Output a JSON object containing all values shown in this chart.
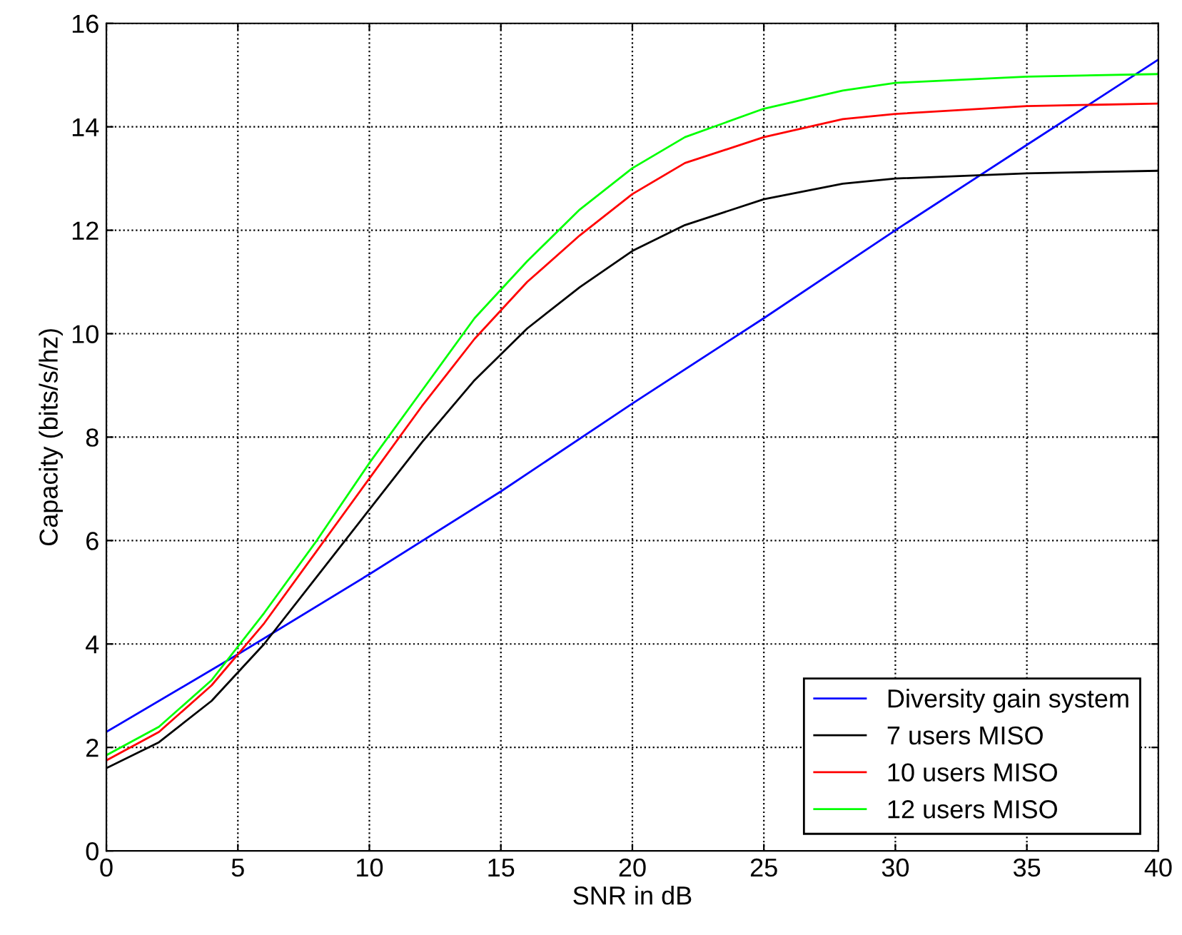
{
  "chart_data": {
    "type": "line",
    "xlabel": "SNR in dB",
    "ylabel": "Capacity (bits/s/hz)",
    "xlim": [
      0,
      40
    ],
    "ylim": [
      0,
      16
    ],
    "xticks": [
      0,
      5,
      10,
      15,
      20,
      25,
      30,
      35,
      40
    ],
    "yticks": [
      0,
      2,
      4,
      6,
      8,
      10,
      12,
      14,
      16
    ],
    "grid": true,
    "legend": "bottom right",
    "marker": "none",
    "line_style": "solid",
    "series": [
      {
        "name": "Diversity gain system",
        "color": "#0000ff",
        "x": [
          0,
          5,
          10,
          15,
          20,
          25,
          30,
          35,
          40
        ],
        "values": [
          2.3,
          3.8,
          5.35,
          6.95,
          8.65,
          10.3,
          12.0,
          13.65,
          15.3
        ]
      },
      {
        "name": "7 users MISO",
        "color": "#000000",
        "x": [
          0,
          2,
          4,
          6,
          8,
          10,
          12,
          14,
          16,
          18,
          20,
          22,
          25,
          28,
          30,
          35,
          40
        ],
        "values": [
          1.6,
          2.1,
          2.9,
          4.0,
          5.3,
          6.6,
          7.9,
          9.1,
          10.1,
          10.9,
          11.6,
          12.1,
          12.6,
          12.9,
          13.0,
          13.1,
          13.15
        ]
      },
      {
        "name": "10 users MISO",
        "color": "#ff0000",
        "x": [
          0,
          2,
          4,
          6,
          8,
          10,
          12,
          14,
          16,
          18,
          20,
          22,
          25,
          28,
          30,
          35,
          40
        ],
        "values": [
          1.75,
          2.3,
          3.2,
          4.4,
          5.8,
          7.2,
          8.6,
          9.9,
          11.0,
          11.9,
          12.7,
          13.3,
          13.8,
          14.15,
          14.25,
          14.4,
          14.45
        ]
      },
      {
        "name": "12 users MISO",
        "color": "#00ff00",
        "x": [
          0,
          2,
          4,
          6,
          8,
          10,
          12,
          14,
          16,
          18,
          20,
          22,
          25,
          28,
          30,
          35,
          40
        ],
        "values": [
          1.85,
          2.4,
          3.3,
          4.6,
          6.0,
          7.5,
          8.9,
          10.3,
          11.4,
          12.4,
          13.2,
          13.8,
          14.35,
          14.7,
          14.85,
          14.97,
          15.02
        ]
      }
    ]
  }
}
